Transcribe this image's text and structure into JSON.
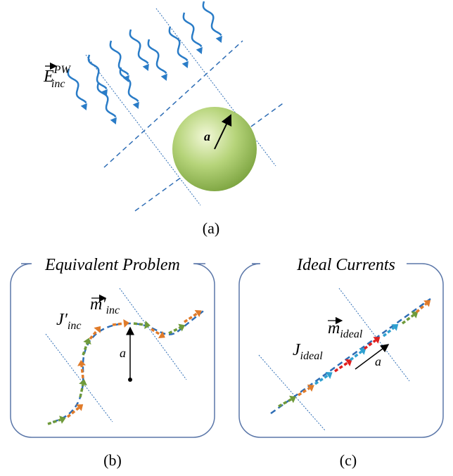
{
  "panel_a": {
    "caption": "(a)",
    "field": {
      "symbol": "E",
      "sup": "PW",
      "sub": "inc"
    },
    "radius": "a"
  },
  "panel_b": {
    "title": "Equivalent Problem",
    "caption": "(b)",
    "j": {
      "symbol": "J′",
      "sub": "inc"
    },
    "m": {
      "symbol": "m′",
      "sub": "inc"
    },
    "radius": "a"
  },
  "panel_c": {
    "title": "Ideal Currents",
    "caption": "(c)",
    "j": {
      "symbol": "J",
      "sub": "ideal"
    },
    "m": {
      "symbol": "m",
      "sub": "ideal"
    },
    "radius": "a"
  }
}
